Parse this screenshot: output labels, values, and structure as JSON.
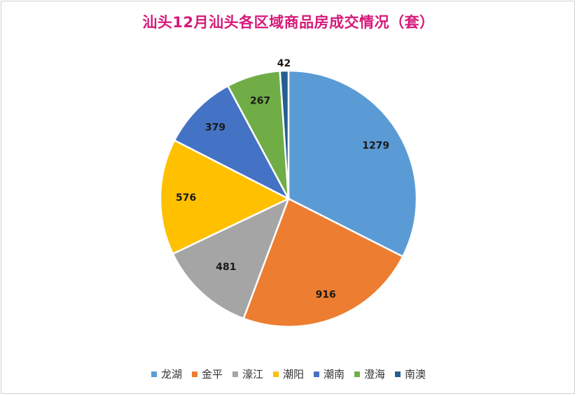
{
  "chart_data": {
    "type": "pie",
    "title": "汕头12月汕头各区域商品房成交情况（套）",
    "categories": [
      "龙湖",
      "金平",
      "濠江",
      "潮阳",
      "潮南",
      "澄海",
      "南澳"
    ],
    "values": [
      1279,
      916,
      481,
      576,
      379,
      267,
      42
    ],
    "colors": [
      "#5b9bd5",
      "#ed7d31",
      "#a5a5a5",
      "#ffc000",
      "#4472c4",
      "#70ad47",
      "#255e91"
    ],
    "legend_position": "bottom",
    "data_labels": [
      "1279",
      "916",
      "481",
      "576",
      "379",
      "267",
      "42"
    ]
  }
}
